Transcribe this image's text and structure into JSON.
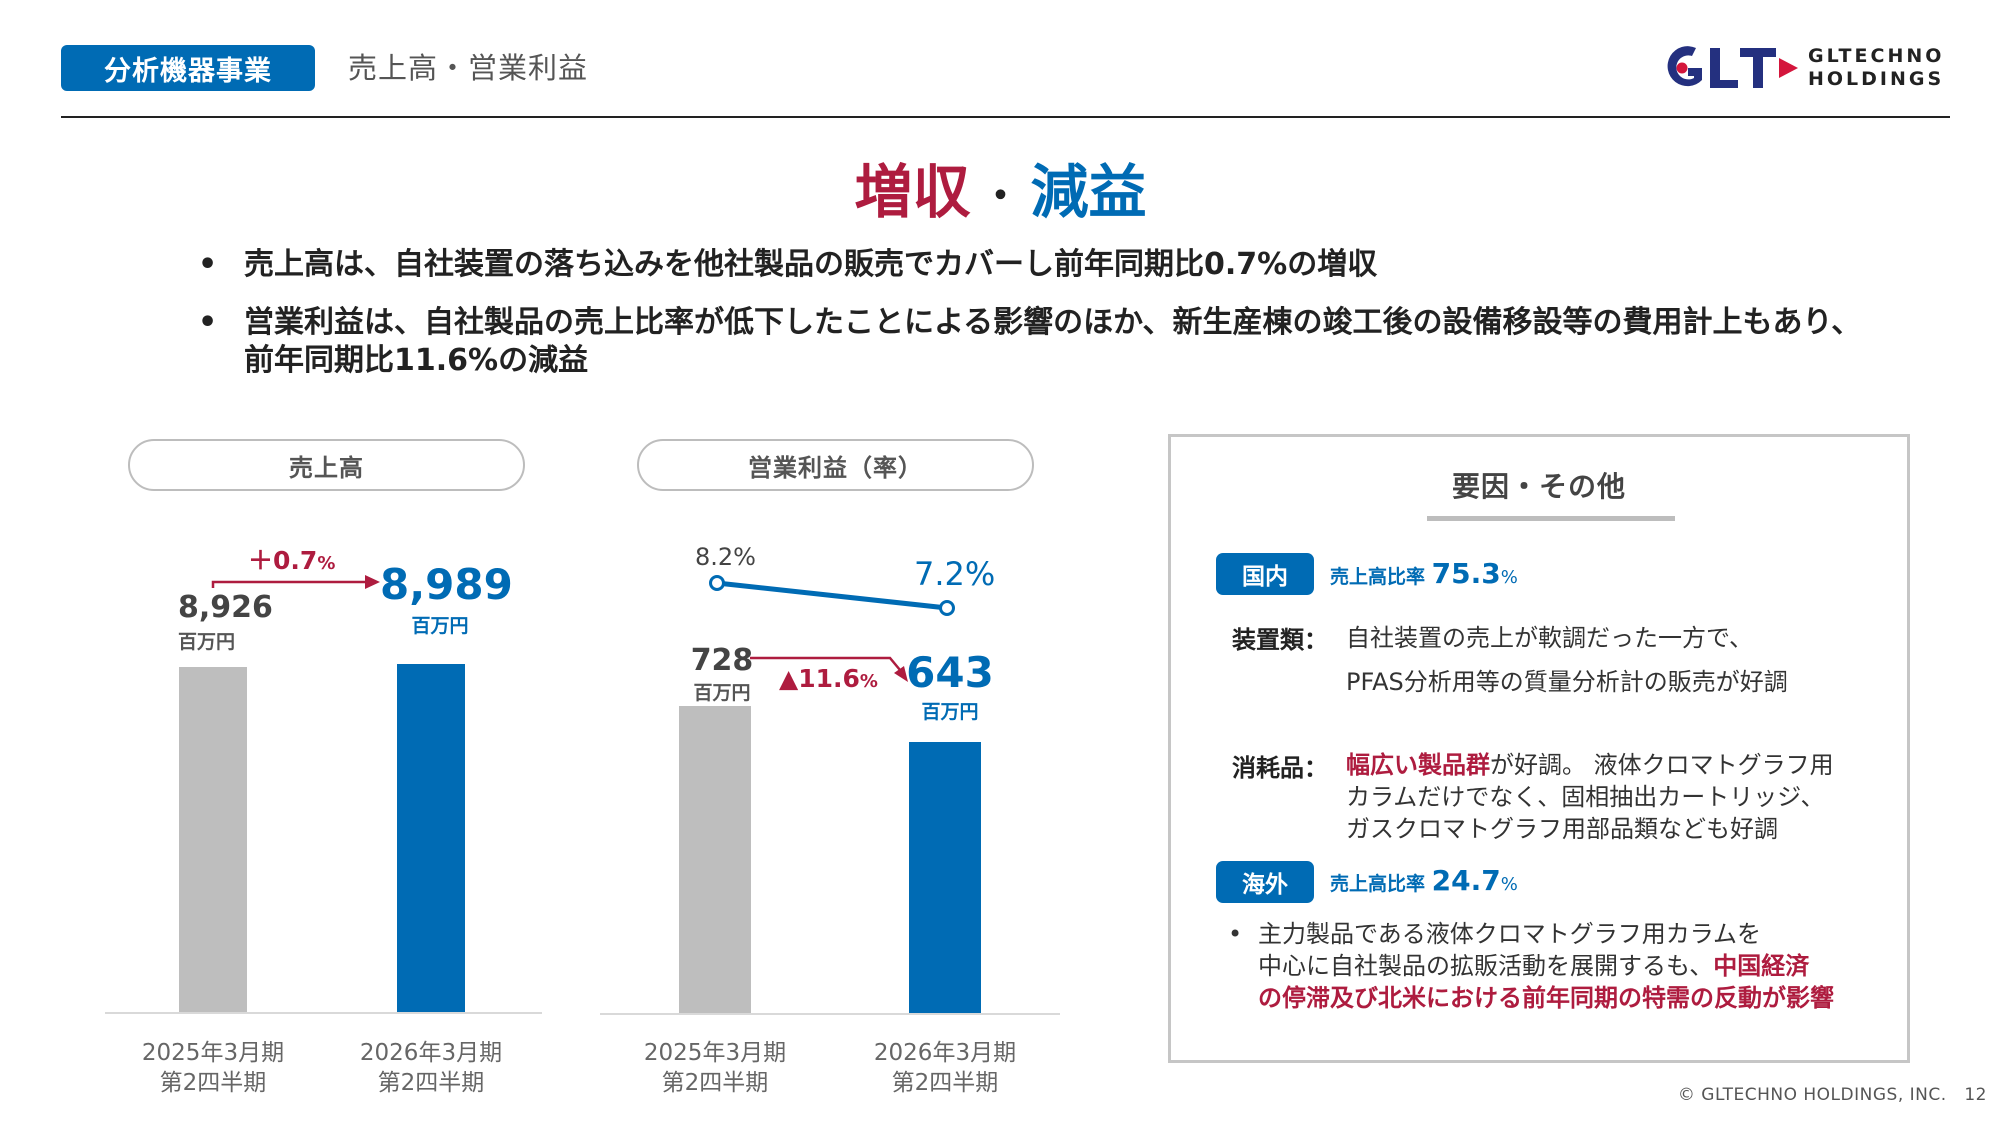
{
  "header": {
    "segment_badge": "分析機器事業",
    "title": "売上高・営業利益",
    "logo": {
      "mark": "GLT",
      "line1": "GLTECHNO",
      "line2": "HOLDINGS"
    }
  },
  "headline": {
    "part1": "増収",
    "separator": "・",
    "part2": "減益"
  },
  "bullets": [
    "売上高は、自社装置の落ち込みを他社製品の販売でカバーし前年同期比0.7%の増収",
    "営業利益は、自社製品の売上比率が低下したことによる影響のほか、新生産棟の竣工後の設備移設等の費用計上もあり、前年同期比11.6%の減益"
  ],
  "colors": {
    "brand_blue": "#006BB4",
    "accent_red": "#AE1C3F",
    "prior_grey": "#BEBEBE",
    "logo_navy": "#24307F"
  },
  "chart_data": [
    {
      "type": "bar",
      "title": "売上高",
      "categories": [
        "2025年3月期\n第2四半期",
        "2026年3月期\n第2四半期"
      ],
      "category_lines": [
        [
          "2025年3月期",
          "第2四半期"
        ],
        [
          "2026年3月期",
          "第2四半期"
        ]
      ],
      "values": [
        8926,
        8989
      ],
      "value_labels": [
        "8,926",
        "8,989"
      ],
      "unit": "百万円",
      "change_label": {
        "sign": "＋",
        "value": "0.7",
        "unit": "%"
      },
      "ylim": [
        0,
        9000
      ]
    },
    {
      "type": "bar+line",
      "title": "営業利益（率）",
      "categories": [
        "2025年3月期\n第2四半期",
        "2026年3月期\n第2四半期"
      ],
      "category_lines": [
        [
          "2025年3月期",
          "第2四半期"
        ],
        [
          "2026年3月期",
          "第2四半期"
        ]
      ],
      "series": [
        {
          "name": "営業利益",
          "type": "bar",
          "values": [
            728,
            643
          ],
          "value_labels": [
            "728",
            "643"
          ],
          "unit": "百万円"
        },
        {
          "name": "営業利益率",
          "type": "line",
          "values": [
            8.2,
            7.2
          ],
          "value_labels": [
            "8.2%",
            "7.2%"
          ]
        }
      ],
      "change_label": {
        "sign": "▲",
        "value": "11.6",
        "unit": "%"
      },
      "ylim": [
        0,
        780
      ]
    }
  ],
  "factors": {
    "title": "要因・その他",
    "domestic": {
      "tag": "国内",
      "ratio_label": "売上高比率",
      "ratio_value": "75.3",
      "ratio_unit": "%",
      "equipment": {
        "label": "装置類：",
        "line1": "自社装置の売上が軟調だった一方で、",
        "line2": "PFAS分析用等の質量分析計の販売が好調"
      },
      "consumables": {
        "label": "消耗品：",
        "highlight": "幅広い製品群",
        "line1_rest": "が好調。 液体クロマトグラフ用",
        "line2": "カラムだけでなく、固相抽出カートリッジ、",
        "line3": "ガスクロマトグラフ用部品類なども好調"
      }
    },
    "overseas": {
      "tag": "海外",
      "ratio_label": "売上高比率",
      "ratio_value": "24.7",
      "ratio_unit": "%",
      "bullet_line1": "主力製品である液体クロマトグラフ用カラムを",
      "bullet_line2_plain": "中心に自社製品の拡販活動を展開するも、",
      "bullet_line2_highlight": "中国経済",
      "bullet_line3_highlight": "の停滞及び北米における前年同期の特需の反動が影響"
    }
  },
  "footer": {
    "copyright": "© GLTECHNO HOLDINGS, INC.",
    "page": "12"
  }
}
